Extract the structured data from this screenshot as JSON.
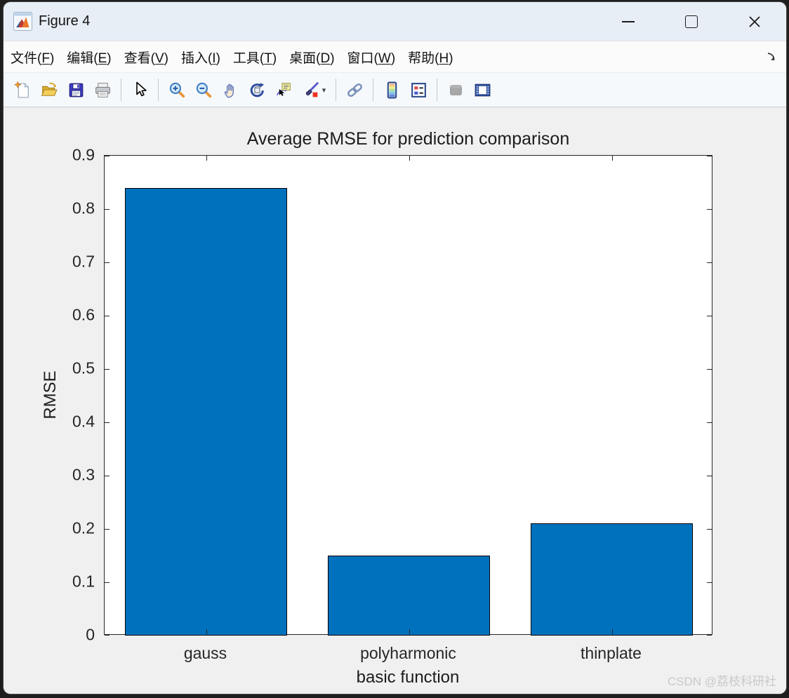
{
  "window": {
    "title": "Figure 4",
    "controls": [
      "minimize",
      "maximize",
      "close"
    ]
  },
  "menu": {
    "items": [
      {
        "label": "文件",
        "key": "F"
      },
      {
        "label": "编辑",
        "key": "E"
      },
      {
        "label": "查看",
        "key": "V"
      },
      {
        "label": "插入",
        "key": "I"
      },
      {
        "label": "工具",
        "key": "T"
      },
      {
        "label": "桌面",
        "key": "D"
      },
      {
        "label": "窗口",
        "key": "W"
      },
      {
        "label": "帮助",
        "key": "H"
      }
    ],
    "dock_icon": "dock-figure-arrow-icon"
  },
  "toolbar": {
    "icons": [
      "new-figure",
      "open-file",
      "save-figure",
      "print-figure",
      "pointer",
      "zoom-in",
      "zoom-out",
      "pan",
      "rotate-3d",
      "data-cursor",
      "brush-data",
      "link-plot",
      "insert-colorbar",
      "insert-legend",
      "hide-plot-tools",
      "show-plot-tools"
    ]
  },
  "chart_data": {
    "type": "bar",
    "title": "Average RMSE for prediction comparison",
    "categories": [
      "gauss",
      "polyharmonic",
      "thinplate"
    ],
    "values": [
      0.84,
      0.15,
      0.21
    ],
    "xlabel": "basic function",
    "ylabel": "RMSE",
    "ylim": [
      0,
      0.9
    ],
    "ytick_step": 0.1,
    "bar_width_fraction": 0.8,
    "bar_color": "#0072BD",
    "bar_edge_color": "#000000",
    "axes_color": "#262626",
    "plot_bg": "#ffffff",
    "figure_bg": "#f0f0f0",
    "grid": false,
    "legend": "none"
  },
  "watermark": "CSDN @荔枝科研社"
}
